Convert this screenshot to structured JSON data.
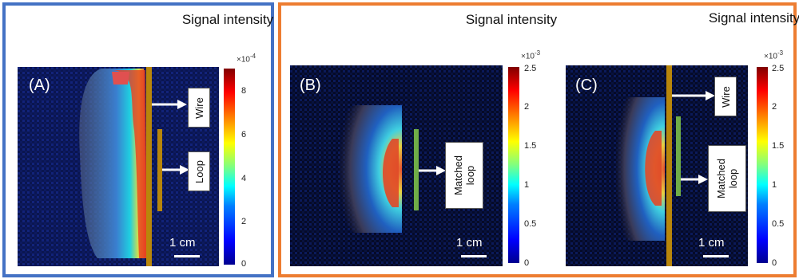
{
  "colorbar_title": "Signal intensity",
  "panels": {
    "a": {
      "label": "(A)",
      "multiplier_base": "×10",
      "multiplier_exp": "-4",
      "ticks": [
        "8",
        "6",
        "4",
        "2",
        "0"
      ],
      "annotations": [
        "Wire",
        "Loop"
      ],
      "scale": "1 cm"
    },
    "b": {
      "label": "(B)",
      "multiplier_base": "×10",
      "multiplier_exp": "-3",
      "ticks": [
        "2.5",
        "2",
        "1.5",
        "1",
        "0.5",
        "0"
      ],
      "annotations": [
        "Matched loop"
      ],
      "scale": "1 cm"
    },
    "c": {
      "label": "(C)",
      "multiplier_base": "×10",
      "multiplier_exp": "-3",
      "ticks": [
        "2.5",
        "2",
        "1.5",
        "1",
        "0.5",
        "0"
      ],
      "annotations": [
        "Wire",
        "Matched loop"
      ],
      "scale": "1 cm"
    }
  },
  "colors": {
    "panel_a_border": "#4472c4",
    "panel_bc_border": "#ed7d31",
    "wire": "#b8860b",
    "matched_loop": "#70ad47",
    "colormap": "jet"
  }
}
